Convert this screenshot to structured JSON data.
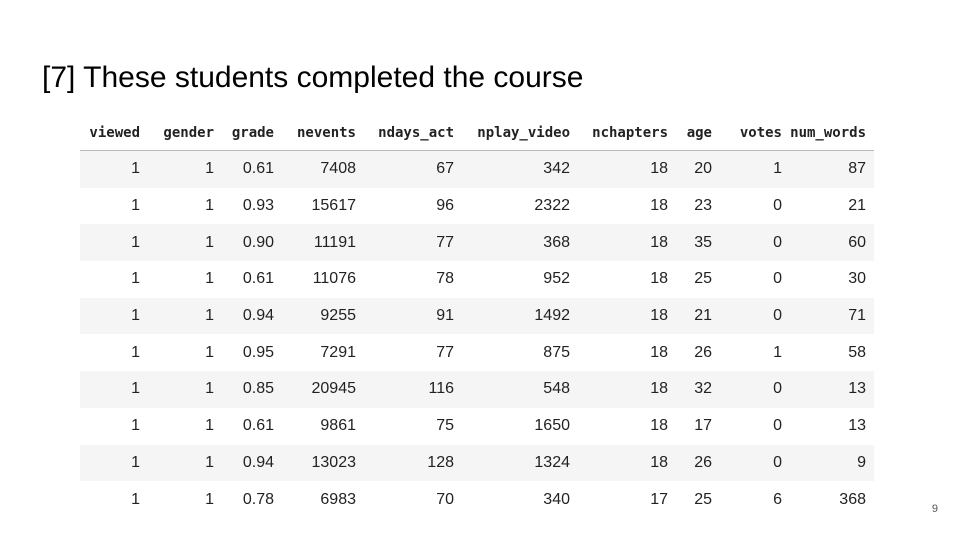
{
  "slide": {
    "title": "[7] These students completed the course",
    "page_number": "9"
  },
  "table": {
    "columns": [
      "viewed",
      "gender",
      "grade",
      "nevents",
      "ndays_act",
      "nplay_video",
      "nchapters",
      "age",
      "votes",
      "num_words"
    ],
    "rows": [
      [
        "1",
        "1",
        "0.61",
        "7408",
        "67",
        "342",
        "18",
        "20",
        "1",
        "87"
      ],
      [
        "1",
        "1",
        "0.93",
        "15617",
        "96",
        "2322",
        "18",
        "23",
        "0",
        "21"
      ],
      [
        "1",
        "1",
        "0.90",
        "11191",
        "77",
        "368",
        "18",
        "35",
        "0",
        "60"
      ],
      [
        "1",
        "1",
        "0.61",
        "11076",
        "78",
        "952",
        "18",
        "25",
        "0",
        "30"
      ],
      [
        "1",
        "1",
        "0.94",
        "9255",
        "91",
        "1492",
        "18",
        "21",
        "0",
        "71"
      ],
      [
        "1",
        "1",
        "0.95",
        "7291",
        "77",
        "875",
        "18",
        "26",
        "1",
        "58"
      ],
      [
        "1",
        "1",
        "0.85",
        "20945",
        "116",
        "548",
        "18",
        "32",
        "0",
        "13"
      ],
      [
        "1",
        "1",
        "0.61",
        "9861",
        "75",
        "1650",
        "18",
        "17",
        "0",
        "13"
      ],
      [
        "1",
        "1",
        "0.94",
        "13023",
        "128",
        "1324",
        "18",
        "26",
        "0",
        "9"
      ],
      [
        "1",
        "1",
        "0.78",
        "6983",
        "70",
        "340",
        "17",
        "25",
        "6",
        "368"
      ]
    ]
  }
}
